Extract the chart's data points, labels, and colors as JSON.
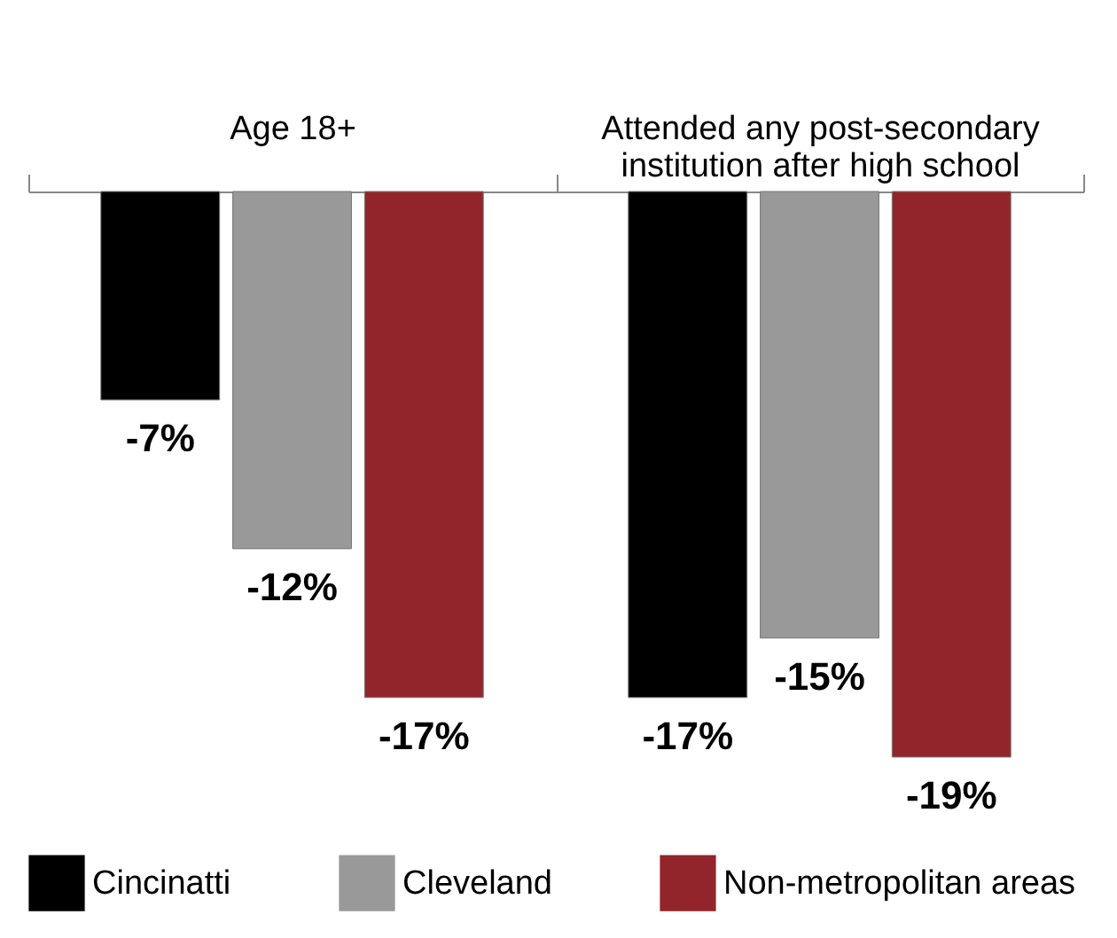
{
  "chart_data": {
    "type": "bar",
    "categories": [
      "Age 18+",
      "Attended any post-secondary institution after high school"
    ],
    "series": [
      {
        "name": "Cincinatti",
        "color": "#000000",
        "values": [
          -7,
          -17
        ],
        "value_labels": [
          "-7%",
          "-17%"
        ]
      },
      {
        "name": "Cleveland",
        "color": "#999999",
        "values": [
          -12,
          -15
        ],
        "value_labels": [
          "-12%",
          "-15%"
        ]
      },
      {
        "name": "Non-metropolitan areas",
        "color": "#92252b",
        "values": [
          -17,
          -19
        ],
        "value_labels": [
          "-17%",
          "-19%"
        ]
      }
    ],
    "legend": "bottom"
  }
}
